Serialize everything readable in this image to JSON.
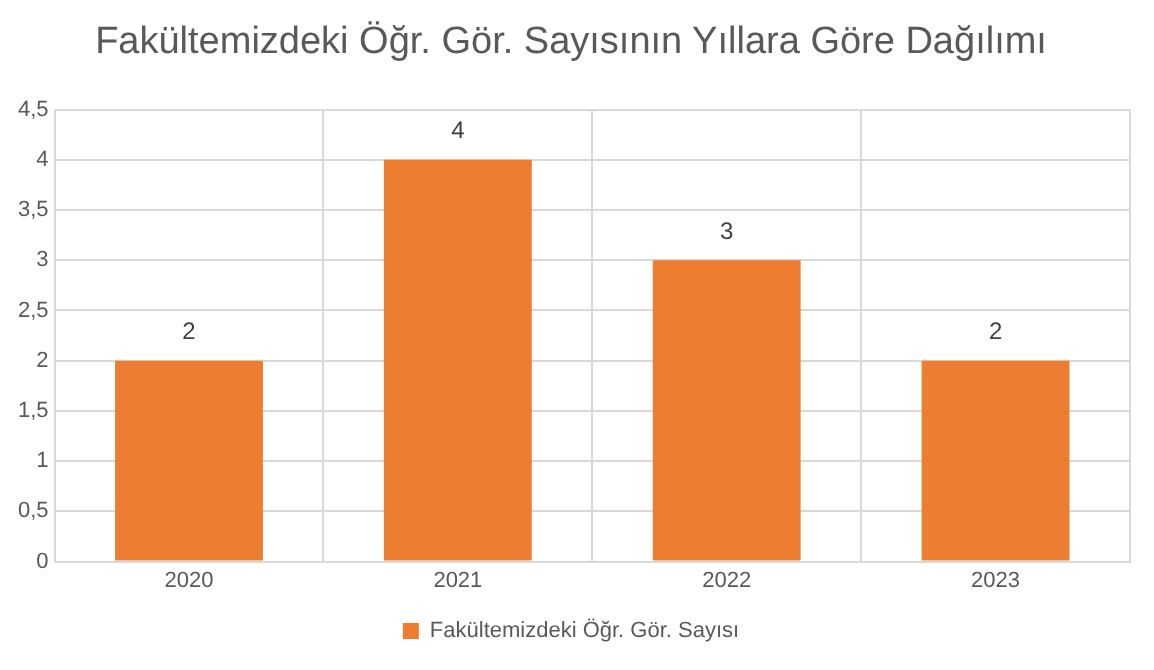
{
  "chart_data": {
    "type": "bar",
    "title": "Fakültemizdeki Öğr. Gör. Sayısının Yıllara Göre Dağılımı",
    "categories": [
      "2020",
      "2021",
      "2022",
      "2023"
    ],
    "series": [
      {
        "name": "Fakültemizdeki Öğr. Gör. Sayısı",
        "color": "#ed7d31",
        "values": [
          2,
          4,
          3,
          2
        ]
      }
    ],
    "ylim": [
      0,
      4.5
    ],
    "yticks": [
      0,
      {
        "value": 0.5,
        "label": "0,5"
      },
      1,
      {
        "value": 1.5,
        "label": "1,5"
      },
      2,
      {
        "value": 2.5,
        "label": "2,5"
      },
      3,
      {
        "value": 3.5,
        "label": "3,5"
      },
      4,
      {
        "value": 4.5,
        "label": "4,5"
      }
    ],
    "grid": true,
    "legend": "bottom",
    "data_labels": true
  }
}
